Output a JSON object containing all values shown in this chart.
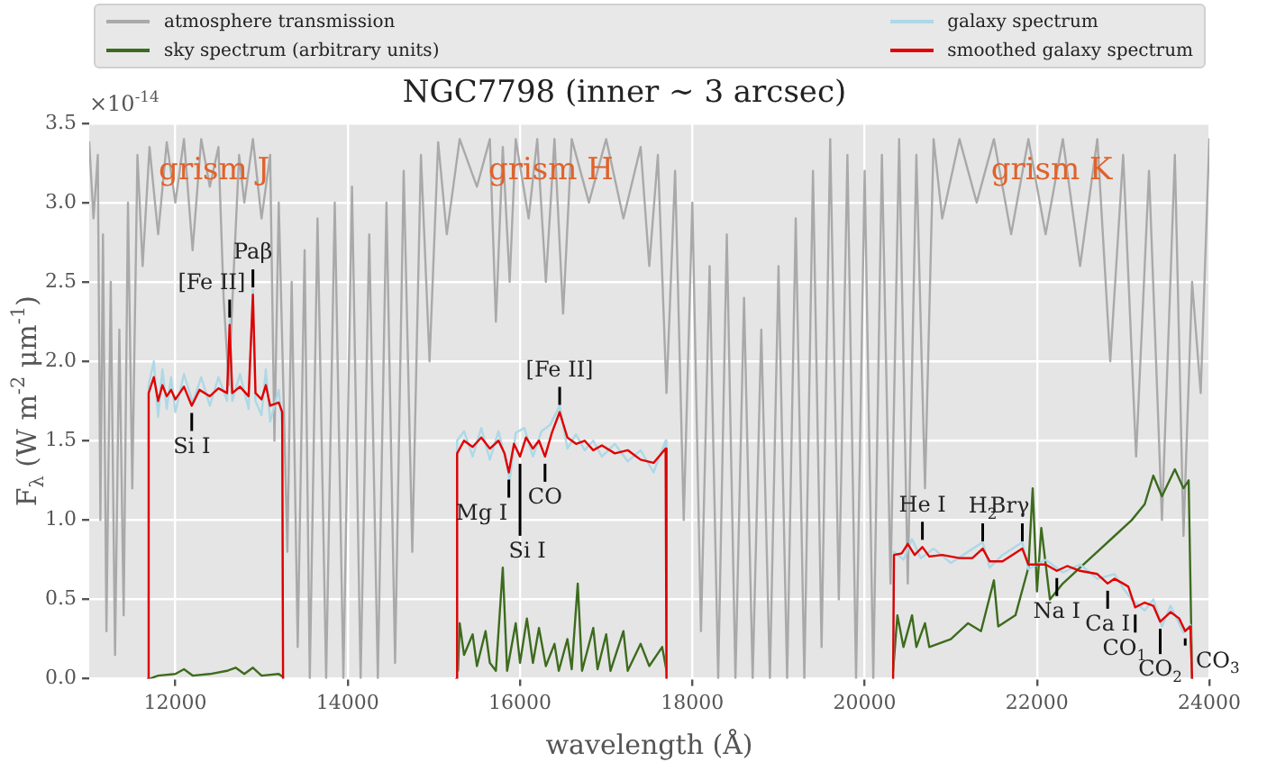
{
  "chart_data": {
    "type": "line",
    "title": "NGC7798 (inner ∼ 3 arcsec)",
    "xlabel": "wavelength (Å)",
    "ylabel": "F$_{λ}$ (W m$^{-2}$ μm$^{-1}$)",
    "xlim": [
      11000,
      24000
    ],
    "xticks": [
      12000,
      14000,
      16000,
      18000,
      20000,
      22000,
      24000
    ],
    "ylim": [
      0,
      3.5
    ],
    "yticks": [
      {
        "value": 0,
        "label": "0.0"
      },
      {
        "value": 0.5,
        "label": "0.5"
      },
      {
        "value": 1,
        "label": "1.0"
      },
      {
        "value": 1.5,
        "label": "1.5"
      },
      {
        "value": 2,
        "label": "2.0"
      },
      {
        "value": 2.5,
        "label": "2.5"
      },
      {
        "value": 3,
        "label": "3.0"
      },
      {
        "value": 3.5,
        "label": "3.5"
      }
    ],
    "grid": true,
    "legend": "top",
    "marker": "none",
    "line_style": "solid",
    "series": [
      {
        "name": "atmosphere transmission",
        "color": "#a9a9a9",
        "x": [
          11000,
          11050,
          11100,
          11130,
          11160,
          11200,
          11250,
          11300,
          11350,
          11400,
          11450,
          11500,
          11560,
          11620,
          11700,
          11800,
          11900,
          12000,
          12100,
          12200,
          12300,
          12400,
          12500,
          12560,
          12620,
          12680,
          12740,
          12800,
          12900,
          13000,
          13100,
          13150,
          13200,
          13300,
          13350,
          13420,
          13500,
          13560,
          13650,
          13750,
          13850,
          13950,
          14050,
          14150,
          14250,
          14350,
          14450,
          14550,
          14650,
          14750,
          14850,
          14950,
          15050,
          15150,
          15300,
          15500,
          15650,
          15720,
          15800,
          15880,
          15950,
          16100,
          16200,
          16300,
          16400,
          16500,
          16600,
          16800,
          17000,
          17200,
          17400,
          17500,
          17600,
          17700,
          17800,
          17900,
          18000,
          18100,
          18200,
          18300,
          18400,
          18500,
          18600,
          18700,
          18800,
          18900,
          19000,
          19100,
          19200,
          19300,
          19400,
          19500,
          19600,
          19700,
          19800,
          19900,
          20000,
          20100,
          20200,
          20300,
          20400,
          20500,
          20600,
          20700,
          20800,
          20900,
          21100,
          21300,
          21500,
          21700,
          21900,
          22100,
          22300,
          22500,
          22700,
          22850,
          23000,
          23150,
          23300,
          23450,
          23600,
          23700,
          23800,
          23900,
          24000
        ],
        "values": [
          3.38,
          2.9,
          3.3,
          1.0,
          2.8,
          0.3,
          2.5,
          0.15,
          2.2,
          0.4,
          3.0,
          1.2,
          3.3,
          2.6,
          3.35,
          2.8,
          3.38,
          3.0,
          3.4,
          2.7,
          3.4,
          3.1,
          3.35,
          2.4,
          1.85,
          2.6,
          3.3,
          3.0,
          3.4,
          2.9,
          3.3,
          1.5,
          3.0,
          0.8,
          2.5,
          0.2,
          2.7,
          0,
          2.9,
          0,
          3.0,
          0,
          3.1,
          0,
          2.8,
          0,
          3.0,
          0.1,
          3.2,
          0.8,
          3.3,
          2.0,
          3.38,
          2.8,
          3.4,
          3.1,
          3.4,
          2.25,
          3.35,
          2.5,
          3.4,
          2.9,
          3.4,
          2.5,
          3.4,
          2.3,
          3.4,
          3.0,
          3.4,
          2.9,
          3.35,
          2.6,
          3.3,
          1.8,
          3.2,
          1.0,
          3.0,
          0.3,
          2.6,
          0,
          2.8,
          0,
          2.4,
          0,
          2.2,
          0,
          2.6,
          0,
          2.9,
          0,
          3.2,
          0.2,
          3.4,
          0.5,
          3.3,
          0,
          3.2,
          0,
          3.3,
          0.6,
          3.4,
          0.6,
          3.3,
          1.2,
          3.4,
          2.9,
          3.4,
          3.0,
          3.4,
          2.8,
          3.4,
          2.8,
          3.4,
          2.6,
          3.4,
          2.0,
          3.3,
          1.4,
          3.2,
          1.0,
          3.3,
          0.9,
          2.5,
          1.8,
          3.4
        ]
      },
      {
        "name": "sky spectrum (arbitrary units)",
        "color": "#3d6b1e",
        "x": [
          11700,
          11800,
          12000,
          12100,
          12200,
          12400,
          12600,
          12700,
          12800,
          12900,
          13000,
          13200,
          13250,
          14000,
          15280,
          15300,
          15350,
          15450,
          15500,
          15600,
          15650,
          15720,
          15800,
          15850,
          15950,
          16000,
          16080,
          16150,
          16220,
          16300,
          16400,
          16450,
          16550,
          16600,
          16670,
          16720,
          16850,
          16900,
          17000,
          17050,
          17200,
          17250,
          17400,
          17500,
          17650,
          17700,
          19000,
          20330,
          20380,
          20450,
          20550,
          20600,
          20700,
          20750,
          21000,
          21200,
          21350,
          21500,
          21550,
          21750,
          21900,
          21950,
          22000,
          22050,
          22150,
          22300,
          22500,
          22700,
          22900,
          23100,
          23250,
          23350,
          23450,
          23600,
          23700,
          23760,
          23800
        ],
        "values": [
          0,
          0.02,
          0.03,
          0.06,
          0.02,
          0.03,
          0.05,
          0.07,
          0.03,
          0.07,
          0.02,
          0.03,
          0.01,
          null,
          0.05,
          0.35,
          0.15,
          0.28,
          0.08,
          0.3,
          0.1,
          0.05,
          0.7,
          0.05,
          0.35,
          0.1,
          0.38,
          0.1,
          0.32,
          0.08,
          0.22,
          0.05,
          0.25,
          0.06,
          0.6,
          0.05,
          0.32,
          0.06,
          0.28,
          0.05,
          0.3,
          0.05,
          0.22,
          0.08,
          0.2,
          0.05,
          null,
          0.05,
          0.4,
          0.2,
          0.4,
          0.2,
          0.35,
          0.2,
          0.25,
          0.35,
          0.3,
          0.62,
          0.33,
          0.4,
          0.7,
          1.2,
          0.55,
          0.95,
          0.5,
          0.6,
          0.7,
          0.8,
          0.9,
          1.0,
          1.1,
          1.28,
          1.15,
          1.32,
          1.2,
          1.25,
          0
        ]
      },
      {
        "name": "galaxy spectrum",
        "color": "#add8e6",
        "x": [
          11680,
          11690,
          11750,
          11800,
          11850,
          11900,
          11950,
          12000,
          12100,
          12200,
          12300,
          12400,
          12500,
          12600,
          12630,
          12660,
          12750,
          12850,
          12900,
          12930,
          13000,
          13050,
          13100,
          13200,
          13240,
          13250,
          14000,
          15260,
          15270,
          15350,
          15450,
          15550,
          15650,
          15750,
          15850,
          15880,
          15950,
          16050,
          16150,
          16250,
          16350,
          16460,
          16550,
          16650,
          16750,
          16850,
          16950,
          17100,
          17250,
          17400,
          17550,
          17690,
          17700,
          19000,
          20330,
          20340,
          20450,
          20550,
          20650,
          20800,
          21000,
          21200,
          21370,
          21450,
          21600,
          21830,
          21900,
          22100,
          22300,
          22500,
          22700,
          22900,
          23000,
          23100,
          23250,
          23350,
          23450,
          23550,
          23700,
          23780,
          23800
        ],
        "values": [
          0,
          1.85,
          2.0,
          1.65,
          1.95,
          1.7,
          1.9,
          1.68,
          1.92,
          1.74,
          1.9,
          1.72,
          1.9,
          1.75,
          2.26,
          1.75,
          1.92,
          1.7,
          2.45,
          1.75,
          1.66,
          1.95,
          1.62,
          1.82,
          1.6,
          0,
          null,
          0,
          1.5,
          1.56,
          1.4,
          1.58,
          1.38,
          1.56,
          1.34,
          1.25,
          1.55,
          1.58,
          1.4,
          1.56,
          1.6,
          1.72,
          1.45,
          1.54,
          1.44,
          1.5,
          1.4,
          1.48,
          1.37,
          1.44,
          1.3,
          1.5,
          0,
          null,
          0,
          0.8,
          0.75,
          0.88,
          0.76,
          0.82,
          0.73,
          0.8,
          0.86,
          0.7,
          0.78,
          0.86,
          0.69,
          0.75,
          0.67,
          0.72,
          0.63,
          0.66,
          0.57,
          0.5,
          0.43,
          0.5,
          0.33,
          0.46,
          0.29,
          0.34,
          0
        ]
      },
      {
        "name": "smoothed galaxy spectrum",
        "color": "#e00000",
        "x": [
          11680,
          11690,
          11750,
          11800,
          11850,
          11900,
          11950,
          12000,
          12100,
          12190,
          12280,
          12400,
          12500,
          12600,
          12630,
          12660,
          12750,
          12850,
          12900,
          12930,
          13000,
          13050,
          13100,
          13200,
          13240,
          13250,
          14000,
          15260,
          15270,
          15350,
          15450,
          15550,
          15650,
          15750,
          15820,
          15870,
          15930,
          16000,
          16070,
          16150,
          16220,
          16290,
          16370,
          16460,
          16550,
          16650,
          16750,
          16850,
          16950,
          17100,
          17250,
          17400,
          17550,
          17690,
          17700,
          19000,
          20330,
          20340,
          20430,
          20500,
          20580,
          20670,
          20750,
          20900,
          21100,
          21250,
          21370,
          21450,
          21600,
          21830,
          21900,
          22100,
          22230,
          22350,
          22500,
          22700,
          22820,
          22900,
          23000,
          23060,
          23140,
          23250,
          23350,
          23430,
          23550,
          23650,
          23720,
          23780,
          23800
        ],
        "values": [
          0,
          1.8,
          1.9,
          1.75,
          1.85,
          1.78,
          1.82,
          1.76,
          1.84,
          1.72,
          1.82,
          1.78,
          1.83,
          1.8,
          2.23,
          1.8,
          1.84,
          1.78,
          2.42,
          1.8,
          1.76,
          1.85,
          1.72,
          1.74,
          1.68,
          0,
          null,
          0,
          1.42,
          1.5,
          1.46,
          1.52,
          1.45,
          1.5,
          1.42,
          1.3,
          1.48,
          1.4,
          1.52,
          1.45,
          1.5,
          1.4,
          1.55,
          1.68,
          1.52,
          1.48,
          1.5,
          1.44,
          1.47,
          1.42,
          1.44,
          1.38,
          1.36,
          1.45,
          0,
          null,
          0,
          0.78,
          0.79,
          0.85,
          0.78,
          0.83,
          0.77,
          0.78,
          0.76,
          0.76,
          0.82,
          0.74,
          0.74,
          0.82,
          0.72,
          0.72,
          0.68,
          0.71,
          0.68,
          0.66,
          0.6,
          0.63,
          0.6,
          0.58,
          0.45,
          0.48,
          0.46,
          0.36,
          0.42,
          0.38,
          0.3,
          0.33,
          0
        ]
      }
    ],
    "annotations": [
      "×10$^{-14}$",
      {
        "text": "grism J",
        "x": 12450,
        "y": 3.2
      },
      {
        "text": "grism H",
        "x": 16360,
        "y": 3.2
      },
      {
        "text": "grism K",
        "x": 22170,
        "y": 3.2
      },
      {
        "text": "[Fe II]",
        "x": 12630,
        "y": 2.23
      },
      {
        "text": "Paβ",
        "x": 12900,
        "y": 2.42
      },
      {
        "text": "Si I",
        "x": 12190,
        "y": 1.72
      },
      {
        "text": "[Fe II]",
        "x": 16460,
        "y": 1.68
      },
      {
        "text": "Mg I",
        "x": 15870,
        "y": 1.3
      },
      {
        "text": "Si I",
        "x": 16000,
        "y": 1.4
      },
      {
        "text": "CO",
        "x": 16290,
        "y": 1.4
      },
      {
        "text": "He I",
        "x": 20670,
        "y": 0.83
      },
      {
        "text": "H$_{2}$",
        "x": 21370,
        "y": 0.82
      },
      {
        "text": "Brγ",
        "x": 21830,
        "y": 0.82
      },
      {
        "text": "Na I",
        "x": 22230,
        "y": 0.68
      },
      {
        "text": "Ca I",
        "x": 22820,
        "y": 0.6
      },
      {
        "text": "CO$_{1}$",
        "x": 23140,
        "y": 0.45
      },
      {
        "text": "CO$_{2}$",
        "x": 23430,
        "y": 0.36
      },
      {
        "text": "CO$_{3}$",
        "x": 23720,
        "y": 0.3
      }
    ]
  }
}
